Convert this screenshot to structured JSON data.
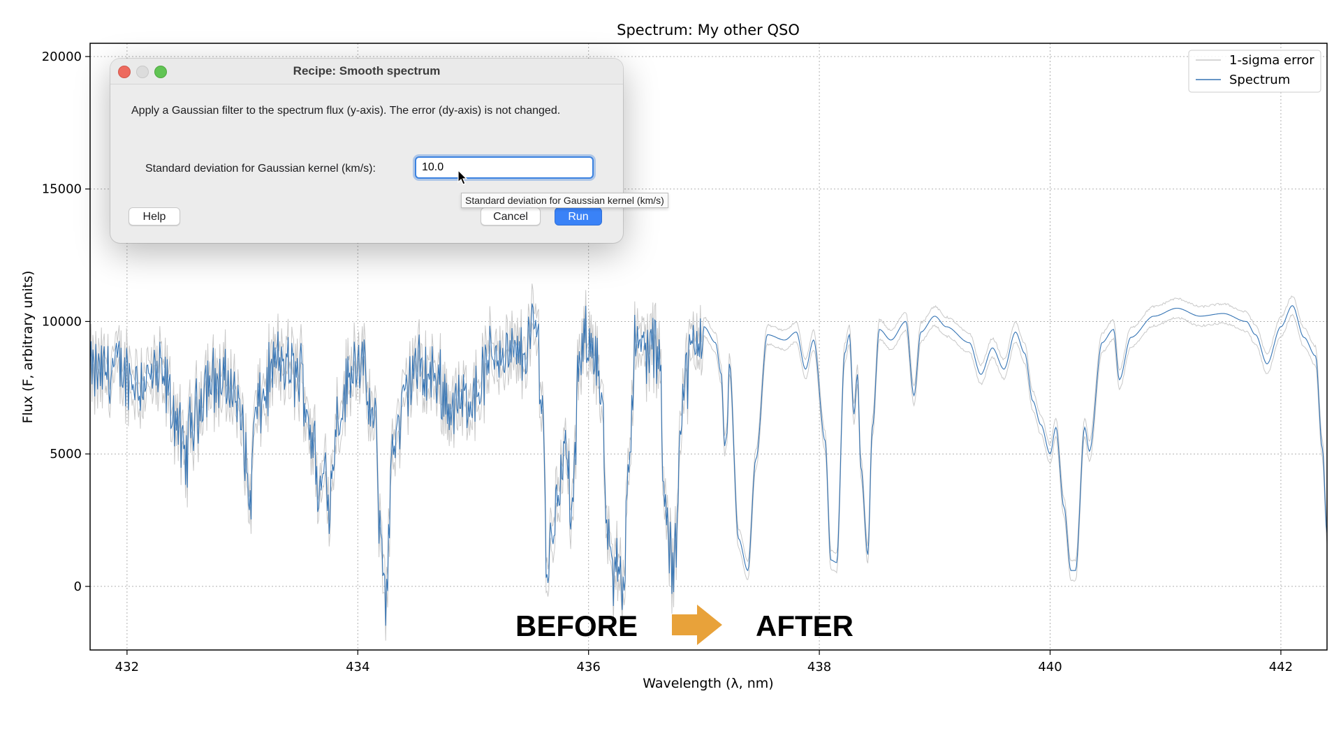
{
  "chart_data": {
    "type": "line",
    "title": "Spectrum: My other QSO",
    "xlabel": "Wavelength (λ, nm)",
    "ylabel": "Flux (F, arbitrary units)",
    "xlim": [
      431.68,
      442.4
    ],
    "ylim": [
      -2400,
      20500
    ],
    "xticks": [
      432,
      434,
      436,
      438,
      440,
      442
    ],
    "yticks": [
      0,
      5000,
      10000,
      15000,
      20000
    ],
    "grid": true,
    "legend_position": "top-right",
    "series": [
      {
        "name": "1-sigma error",
        "color": "#c8c8c8"
      },
      {
        "name": "Spectrum",
        "color": "#3574b4"
      }
    ],
    "spectrum_points": [
      [
        431.68,
        8000
      ],
      [
        431.9,
        8200
      ],
      [
        432.1,
        7800
      ],
      [
        432.3,
        7900
      ],
      [
        432.42,
        6500
      ],
      [
        432.5,
        4700
      ],
      [
        432.56,
        6200
      ],
      [
        432.7,
        7800
      ],
      [
        432.9,
        7600
      ],
      [
        433.0,
        6200
      ],
      [
        433.06,
        3200
      ],
      [
        433.12,
        6600
      ],
      [
        433.3,
        8400
      ],
      [
        433.5,
        8000
      ],
      [
        433.62,
        5500
      ],
      [
        433.66,
        3200
      ],
      [
        433.72,
        4500
      ],
      [
        433.76,
        3400
      ],
      [
        433.82,
        6500
      ],
      [
        434.0,
        8700
      ],
      [
        434.15,
        6000
      ],
      [
        434.2,
        1800
      ],
      [
        434.25,
        -400
      ],
      [
        434.3,
        5500
      ],
      [
        434.5,
        8200
      ],
      [
        434.7,
        7800
      ],
      [
        434.8,
        6800
      ],
      [
        434.9,
        6900
      ],
      [
        435.0,
        7300
      ],
      [
        435.2,
        8900
      ],
      [
        435.4,
        8600
      ],
      [
        435.55,
        9800
      ],
      [
        435.6,
        7000
      ],
      [
        435.64,
        500
      ],
      [
        435.7,
        2600
      ],
      [
        435.76,
        4500
      ],
      [
        435.8,
        5000
      ],
      [
        435.86,
        2800
      ],
      [
        435.92,
        8400
      ],
      [
        436.0,
        9400
      ],
      [
        436.06,
        9000
      ],
      [
        436.12,
        6500
      ],
      [
        436.15,
        2500
      ],
      [
        436.2,
        300
      ],
      [
        436.26,
        900
      ],
      [
        436.3,
        200
      ],
      [
        436.35,
        5000
      ],
      [
        436.4,
        8900
      ],
      [
        436.55,
        9000
      ],
      [
        436.62,
        8500
      ],
      [
        436.65,
        3500
      ],
      [
        436.7,
        1500
      ],
      [
        436.73,
        300
      ],
      [
        436.76,
        2000
      ],
      [
        436.8,
        7000
      ],
      [
        436.9,
        8800
      ],
      [
        437.0,
        9800
      ],
      [
        437.1,
        9200
      ],
      [
        437.15,
        8000
      ],
      [
        437.18,
        5300
      ],
      [
        437.2,
        5800
      ],
      [
        437.22,
        8400
      ],
      [
        437.3,
        1800
      ],
      [
        437.38,
        600
      ],
      [
        437.45,
        4800
      ],
      [
        437.55,
        9500
      ],
      [
        437.7,
        9300
      ],
      [
        437.8,
        9600
      ],
      [
        437.88,
        8200
      ],
      [
        437.95,
        9300
      ],
      [
        438.05,
        5500
      ],
      [
        438.1,
        1000
      ],
      [
        438.15,
        900
      ],
      [
        438.22,
        8800
      ],
      [
        438.26,
        9500
      ],
      [
        438.3,
        6500
      ],
      [
        438.33,
        8000
      ],
      [
        438.36,
        4500
      ],
      [
        438.42,
        1200
      ],
      [
        438.46,
        6000
      ],
      [
        438.52,
        9700
      ],
      [
        438.62,
        9300
      ],
      [
        438.75,
        10000
      ],
      [
        438.82,
        7200
      ],
      [
        438.88,
        9600
      ],
      [
        439.0,
        10200
      ],
      [
        439.1,
        9800
      ],
      [
        439.3,
        9200
      ],
      [
        439.4,
        8000
      ],
      [
        439.5,
        9000
      ],
      [
        439.6,
        8200
      ],
      [
        439.7,
        9600
      ],
      [
        439.78,
        8800
      ],
      [
        439.85,
        7000
      ],
      [
        439.92,
        6100
      ],
      [
        440.0,
        5000
      ],
      [
        440.05,
        6000
      ],
      [
        440.12,
        3000
      ],
      [
        440.18,
        600
      ],
      [
        440.22,
        600
      ],
      [
        440.3,
        6000
      ],
      [
        440.34,
        5100
      ],
      [
        440.45,
        9200
      ],
      [
        440.55,
        9700
      ],
      [
        440.6,
        7800
      ],
      [
        440.7,
        9400
      ],
      [
        440.9,
        10200
      ],
      [
        441.1,
        10500
      ],
      [
        441.3,
        10200
      ],
      [
        441.5,
        10300
      ],
      [
        441.7,
        10000
      ],
      [
        441.78,
        9500
      ],
      [
        441.88,
        8400
      ],
      [
        442.0,
        9800
      ],
      [
        442.1,
        10600
      ],
      [
        442.2,
        9400
      ],
      [
        442.3,
        8700
      ],
      [
        442.36,
        5200
      ],
      [
        442.4,
        2000
      ]
    ]
  },
  "annotations": {
    "before": "BEFORE",
    "after": "AFTER",
    "color": "#e8a23a"
  },
  "dialog": {
    "title": "Recipe: Smooth spectrum",
    "description": "Apply a Gaussian filter to the spectrum flux (y-axis). The error (dy-axis) is not changed.",
    "param_label": "Standard deviation for Gaussian kernel (km/s):",
    "param_value": "10.0",
    "tooltip": "Standard deviation for Gaussian kernel (km/s)",
    "help_label": "Help",
    "cancel_label": "Cancel",
    "run_label": "Run"
  }
}
